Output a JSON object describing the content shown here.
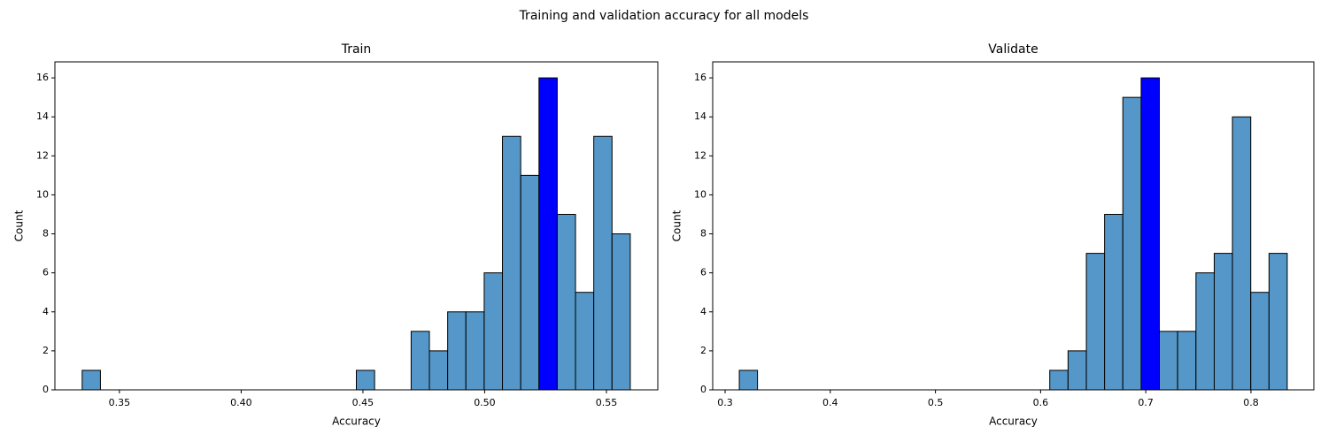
{
  "title": "Training and validation accuracy for all models",
  "chart_data": [
    {
      "type": "histogram",
      "title": "Train",
      "x_label": "Accuracy",
      "y_label": "Count",
      "bins": [
        0.3347,
        0.3422,
        0.3497,
        0.3572,
        0.3647,
        0.3722,
        0.3797,
        0.3872,
        0.3947,
        0.4022,
        0.4098,
        0.4173,
        0.4248,
        0.4323,
        0.4398,
        0.4473,
        0.4548,
        0.4623,
        0.4698,
        0.4773,
        0.4848,
        0.4923,
        0.4998,
        0.5073,
        0.5148,
        0.5223,
        0.5298,
        0.5373,
        0.5448,
        0.5523,
        0.5598
      ],
      "values": [
        1,
        0,
        0,
        0,
        0,
        0,
        0,
        0,
        0,
        0,
        0,
        0,
        0,
        0,
        0,
        1,
        0,
        0,
        3,
        2,
        4,
        4,
        6,
        13,
        11,
        16,
        9,
        5,
        13,
        8
      ],
      "bar_colors": [
        "#5497c8",
        "#5497c8",
        "#5497c8",
        "#5497c8",
        "#5497c8",
        "#5497c8",
        "#5497c8",
        "#5497c8",
        "#5497c8",
        "#5497c8",
        "#5497c8",
        "#5497c8",
        "#5497c8",
        "#5497c8",
        "#5497c8",
        "#5497c8",
        "#5497c8",
        "#5497c8",
        "#5497c8",
        "#5497c8",
        "#5497c8",
        "#5497c8",
        "#5497c8",
        "#5497c8",
        "#5497c8",
        "#0000ff",
        "#5497c8",
        "#5497c8",
        "#5497c8",
        "#5497c8"
      ],
      "xlim": [
        0.3235,
        0.5711
      ],
      "xticks": [
        0.35,
        {
          "value": 0.4,
          "label": "0.40"
        },
        0.45,
        {
          "value": 0.5,
          "label": "0.50"
        },
        0.55
      ],
      "ylim": [
        0,
        16.82
      ],
      "yticks": [
        0,
        2,
        4,
        6,
        8,
        10,
        12,
        14,
        16
      ]
    },
    {
      "type": "histogram",
      "title": "Validate",
      "x_label": "Accuracy",
      "y_label": "Count",
      "bins": [
        0.3135,
        0.3308,
        0.3482,
        0.3656,
        0.3829,
        0.4003,
        0.4177,
        0.435,
        0.4524,
        0.4698,
        0.4872,
        0.5045,
        0.5219,
        0.5393,
        0.5566,
        0.574,
        0.5914,
        0.6087,
        0.6261,
        0.6435,
        0.6608,
        0.6782,
        0.6956,
        0.7129,
        0.7303,
        0.7477,
        0.7651,
        0.7824,
        0.7998,
        0.8172,
        0.8345
      ],
      "values": [
        1,
        0,
        0,
        0,
        0,
        0,
        0,
        0,
        0,
        0,
        0,
        0,
        0,
        0,
        0,
        0,
        0,
        1,
        2,
        7,
        9,
        15,
        16,
        3,
        3,
        6,
        7,
        14,
        5,
        7
      ],
      "bar_colors": [
        "#5497c8",
        "#5497c8",
        "#5497c8",
        "#5497c8",
        "#5497c8",
        "#5497c8",
        "#5497c8",
        "#5497c8",
        "#5497c8",
        "#5497c8",
        "#5497c8",
        "#5497c8",
        "#5497c8",
        "#5497c8",
        "#5497c8",
        "#5497c8",
        "#5497c8",
        "#5497c8",
        "#5497c8",
        "#5497c8",
        "#5497c8",
        "#5497c8",
        "#0000ff",
        "#5497c8",
        "#5497c8",
        "#5497c8",
        "#5497c8",
        "#5497c8",
        "#5497c8",
        "#5497c8"
      ],
      "xlim": [
        0.2882,
        0.8598
      ],
      "xticks": [
        0.3,
        0.4,
        0.5,
        0.6,
        0.7,
        0.8
      ],
      "ylim": [
        0,
        16.82
      ],
      "yticks": [
        0,
        2,
        4,
        6,
        8,
        10,
        12,
        14,
        16
      ]
    }
  ]
}
